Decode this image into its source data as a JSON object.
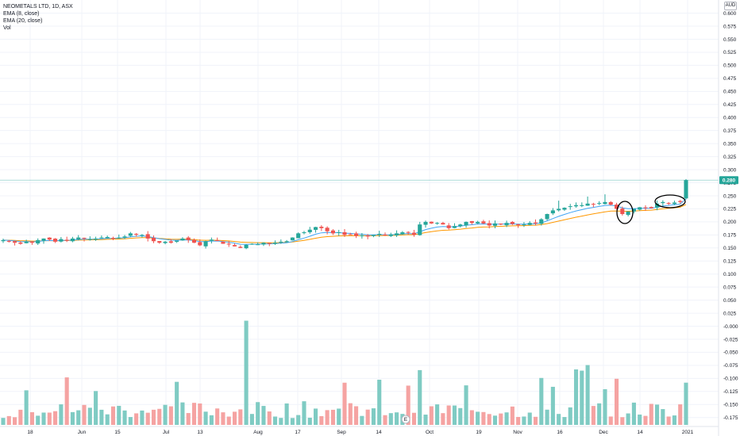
{
  "legend": {
    "symbol": "NEOMETALS LTD, 1D, ASX",
    "ema8": "EMA (8, close)",
    "ema20": "EMA (20, close)",
    "vol": "Vol"
  },
  "currency": "AUD",
  "last_price_label": "0.280",
  "earnings_marker": "E",
  "colors": {
    "up": "#26a69a",
    "down": "#ef5350",
    "up_volume": "#7fcbc3",
    "down_volume": "#f5a3a2",
    "ema_fast": "#42a5f5",
    "ema_slow": "#ff9800",
    "last_price_line": "#26a69a",
    "annotation": "#000000"
  },
  "chart_data": {
    "type": "candlestick",
    "title": "NEOMETALS LTD, 1D, ASX",
    "x_ticks": [
      "18",
      "Jun",
      "15",
      "Jul",
      "13",
      "Aug",
      "17",
      "Sep",
      "14",
      "Oct",
      "19",
      "Nov",
      "16",
      "Dec",
      "14",
      "2021"
    ],
    "y_ticks": [
      "0.600",
      "0.575",
      "0.550",
      "0.525",
      "0.500",
      "0.475",
      "0.450",
      "0.425",
      "0.400",
      "0.375",
      "0.350",
      "0.325",
      "0.300",
      "0.275",
      "0.250",
      "0.225",
      "0.200",
      "0.175",
      "0.150",
      "0.125",
      "0.100",
      "0.075",
      "0.050",
      "0.025",
      "-0.000",
      "-0.025",
      "-0.050",
      "-0.075",
      "-0.100",
      "-0.125",
      "-0.150",
      "-0.175"
    ],
    "ylim": [
      -0.18,
      0.61
    ],
    "last_price": 0.28,
    "series": [
      {
        "name": "EMA (8, close)"
      },
      {
        "name": "EMA (20, close)"
      }
    ],
    "closes": [
      0.165,
      0.163,
      0.16,
      0.158,
      0.162,
      0.16,
      0.165,
      0.168,
      0.166,
      0.162,
      0.167,
      0.164,
      0.168,
      0.17,
      0.168,
      0.167,
      0.168,
      0.17,
      0.171,
      0.169,
      0.17,
      0.172,
      0.178,
      0.176,
      0.175,
      0.168,
      0.163,
      0.16,
      0.162,
      0.16,
      0.164,
      0.168,
      0.165,
      0.16,
      0.155,
      0.163,
      0.166,
      0.164,
      0.158,
      0.157,
      0.153,
      0.15,
      0.156,
      0.158,
      0.157,
      0.16,
      0.158,
      0.16,
      0.162,
      0.163,
      0.17,
      0.178,
      0.18,
      0.185,
      0.19,
      0.188,
      0.182,
      0.178,
      0.18,
      0.175,
      0.176,
      0.173,
      0.174,
      0.172,
      0.175,
      0.177,
      0.174,
      0.176,
      0.178,
      0.18,
      0.18,
      0.175,
      0.195,
      0.2,
      0.197,
      0.198,
      0.195,
      0.188,
      0.192,
      0.195,
      0.2,
      0.198,
      0.2,
      0.197,
      0.193,
      0.197,
      0.195,
      0.198,
      0.196,
      0.194,
      0.195,
      0.198,
      0.197,
      0.205,
      0.215,
      0.222,
      0.225,
      0.227,
      0.23,
      0.232,
      0.232,
      0.235,
      0.234,
      0.236,
      0.238,
      0.233,
      0.225,
      0.215,
      0.22,
      0.225,
      0.228,
      0.227,
      0.226,
      0.235,
      0.238,
      0.236,
      0.237,
      0.238,
      0.28
    ],
    "volume_ylim": [
      0,
      0.19
    ]
  }
}
